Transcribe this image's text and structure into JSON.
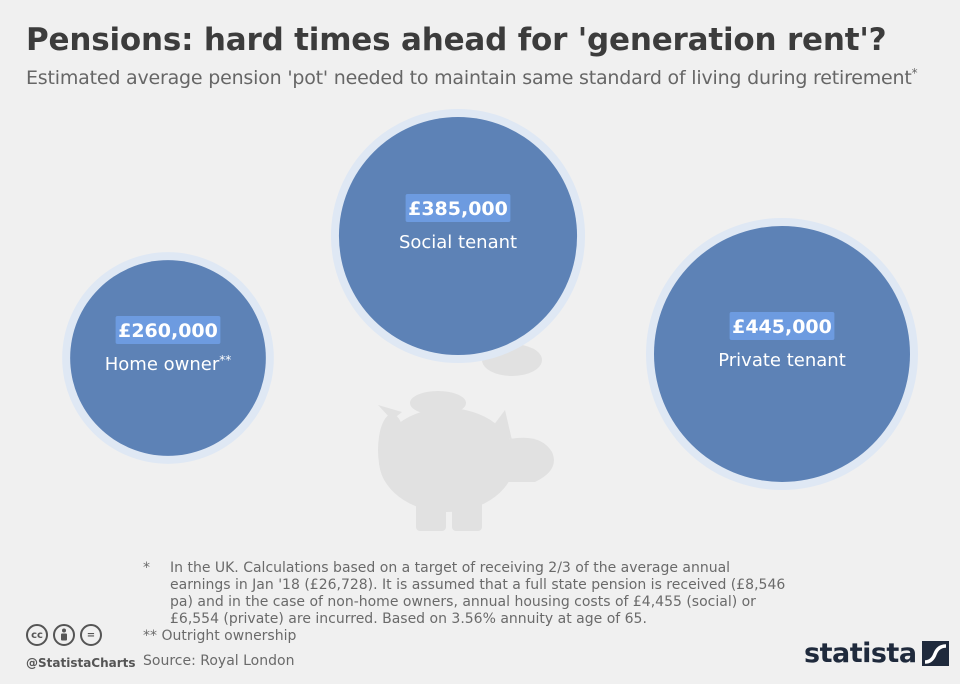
{
  "header": {
    "title": "Pensions: hard times ahead for 'generation rent'?",
    "subtitle": "Estimated average pension 'pot' needed to maintain same standard of living during retirement",
    "subtitle_mark": "*"
  },
  "chart_data": {
    "type": "bubble",
    "title": "Pensions: hard times ahead for 'generation rent'?",
    "subtitle": "Estimated average pension 'pot' needed to maintain same standard of living during retirement",
    "unit": "GBP",
    "items": [
      {
        "category": "Home owner",
        "marker": "**",
        "value": 260000,
        "label": "£260,000"
      },
      {
        "category": "Social tenant",
        "marker": "",
        "value": 385000,
        "label": "£385,000"
      },
      {
        "category": "Private tenant",
        "marker": "",
        "value": 445000,
        "label": "£445,000"
      }
    ]
  },
  "colors": {
    "bubble_fill": "#5d82b6",
    "bubble_ring": "#dfe8f4",
    "value_badge": "#6d9be0",
    "piggy": "#e1e1e1",
    "background": "#f0f0f0"
  },
  "footnote": {
    "mark1": "*",
    "text1": "In the UK. Calculations based on a target of receiving 2/3 of the average annual earnings in Jan '18 (£26,728). It is assumed that a full state pension is received (£8,546 pa) and in the case of non-home owners, annual housing costs of £4,455 (social) or £6,554 (private) are incurred. Based on 3.56% annuity at age of 65.",
    "text2": "** Outright ownership",
    "source": "Source: Royal London"
  },
  "branding": {
    "handle": "@StatistaCharts",
    "logo": "statista",
    "license_icons": [
      "cc-icon",
      "by-icon",
      "nd-icon"
    ]
  }
}
